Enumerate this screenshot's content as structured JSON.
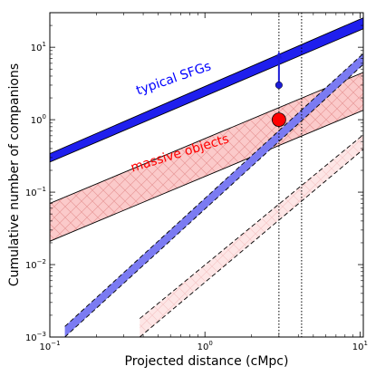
{
  "chart_data": {
    "type": "line",
    "xlabel": "Projected distance (cMpc)",
    "ylabel": "Cumulative number of companions",
    "xscale": "log",
    "yscale": "log",
    "xlim": [
      0.1,
      10.5
    ],
    "ylim": [
      0.001,
      30
    ],
    "xticks": [
      {
        "value": 0.1,
        "base": "10",
        "exp": "−1"
      },
      {
        "value": 1,
        "base": "10",
        "exp": "0"
      },
      {
        "value": 10,
        "base": "10",
        "exp": "1"
      }
    ],
    "yticks": [
      {
        "value": 0.001,
        "base": "10",
        "exp": "−3"
      },
      {
        "value": 0.01,
        "base": "10",
        "exp": "−2"
      },
      {
        "value": 0.1,
        "base": "10",
        "exp": "−1"
      },
      {
        "value": 1,
        "base": "10",
        "exp": "0"
      },
      {
        "value": 10,
        "base": "10",
        "exp": "1"
      }
    ],
    "bands": [
      {
        "style": "solid-blue",
        "x": [
          0.1,
          10.5
        ],
        "lower": [
          0.26,
          18.0
        ],
        "upper": [
          0.34,
          25.5
        ]
      },
      {
        "style": "light-blue-dashed",
        "x": [
          0.125,
          10.5
        ],
        "lower": [
          0.001,
          5.8
        ],
        "upper": [
          0.0014,
          8.2
        ]
      },
      {
        "style": "red-hatched",
        "x": [
          0.1,
          10.5
        ],
        "lower": [
          0.021,
          1.35
        ],
        "upper": [
          0.07,
          4.5
        ]
      },
      {
        "style": "light-red-dashed-hatched",
        "x": [
          0.38,
          10.5
        ],
        "lower": [
          0.001,
          0.39
        ],
        "upper": [
          0.0018,
          0.62
        ]
      }
    ],
    "vlines": [
      3.0,
      4.2
    ],
    "points": [
      {
        "kind": "blue-arrow",
        "x": 3.0,
        "y": 3.0,
        "y_to": 8.8,
        "color": "#1c1cd6"
      },
      {
        "kind": "red-circle",
        "x": 3.0,
        "y": 1.0,
        "color": "#ff0000"
      }
    ],
    "annotations": [
      {
        "text": "typical SFGs",
        "x": 0.37,
        "y": 2.2,
        "angle": -19,
        "color": "#0000ff"
      },
      {
        "text": "massive objects",
        "x": 0.34,
        "y": 0.19,
        "angle": -17,
        "color": "#ff0000"
      }
    ],
    "grid": false
  }
}
